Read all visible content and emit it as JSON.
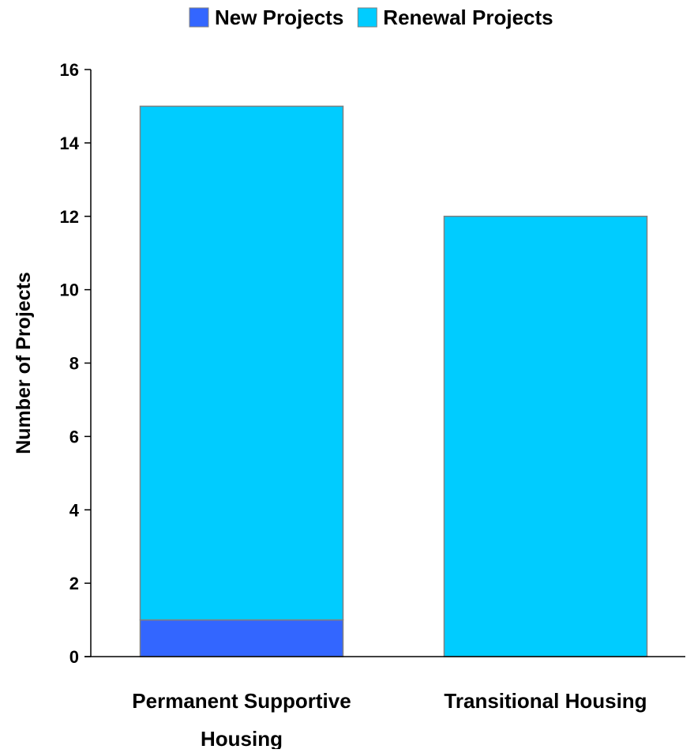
{
  "chart_data": {
    "type": "bar",
    "stacked": true,
    "title": "",
    "xlabel": "",
    "ylabel": "Number of Projects",
    "categories": [
      "Permanent Supportive Housing",
      "Transitional Housing"
    ],
    "category_label_lines": [
      [
        "Permanent Supportive",
        "Housing"
      ],
      [
        "Transitional Housing"
      ]
    ],
    "series": [
      {
        "name": "New Projects",
        "values": [
          1,
          0
        ],
        "color": "#3366FF"
      },
      {
        "name": "Renewal Projects",
        "values": [
          14,
          12
        ],
        "color": "#00CCFF"
      }
    ],
    "ylim": [
      0,
      16
    ],
    "yticks": [
      0,
      2,
      4,
      6,
      8,
      10,
      12,
      14,
      16
    ],
    "grid": false,
    "legend_position": "top-center"
  }
}
